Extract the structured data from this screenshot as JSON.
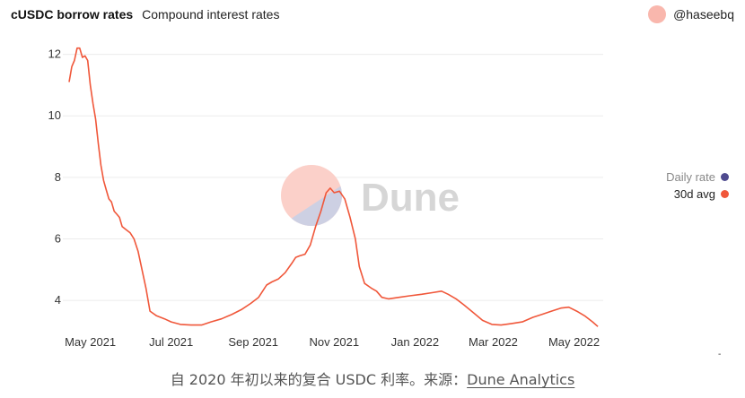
{
  "header": {
    "title": "cUSDC borrow rates",
    "subtitle": "Compound interest rates"
  },
  "author": {
    "name": "@haseebq"
  },
  "watermark": {
    "text": "Dune"
  },
  "legend": [
    {
      "label": "Daily rate",
      "color": "#4f4b8f",
      "active": false
    },
    {
      "label": "30d avg",
      "color": "#f0573a",
      "active": true
    }
  ],
  "caption": {
    "prefix": "自 2020 年初以来的复合 USDC 利率。来源：",
    "link": "Dune Analytics"
  },
  "chart_data": {
    "type": "line",
    "x_type": "date",
    "xlim": [
      "2021-04-15",
      "2022-05-23"
    ],
    "ylim": [
      3.1,
      12.6
    ],
    "y_ticks": [
      4,
      6,
      8,
      10,
      12
    ],
    "x_ticks": [
      {
        "date": "2021-05-01",
        "label": "May 2021"
      },
      {
        "date": "2021-07-01",
        "label": "Jul 2021"
      },
      {
        "date": "2021-09-01",
        "label": "Sep 2021"
      },
      {
        "date": "2021-11-01",
        "label": "Nov 2021"
      },
      {
        "date": "2022-01-01",
        "label": "Jan 2022"
      },
      {
        "date": "2022-03-01",
        "label": "Mar 2022"
      },
      {
        "date": "2022-05-01",
        "label": "May 2022"
      }
    ],
    "grid": true,
    "legend_position": "right",
    "series": [
      {
        "name": "30d avg",
        "color": "#f0573a",
        "points": [
          [
            "2021-04-15",
            11.1
          ],
          [
            "2021-04-17",
            11.6
          ],
          [
            "2021-04-19",
            11.8
          ],
          [
            "2021-04-21",
            12.2
          ],
          [
            "2021-04-23",
            12.2
          ],
          [
            "2021-04-25",
            11.9
          ],
          [
            "2021-04-27",
            11.95
          ],
          [
            "2021-04-29",
            11.8
          ],
          [
            "2021-05-01",
            11.0
          ],
          [
            "2021-05-03",
            10.4
          ],
          [
            "2021-05-05",
            9.9
          ],
          [
            "2021-05-07",
            9.1
          ],
          [
            "2021-05-09",
            8.4
          ],
          [
            "2021-05-11",
            7.9
          ],
          [
            "2021-05-13",
            7.6
          ],
          [
            "2021-05-15",
            7.3
          ],
          [
            "2021-05-17",
            7.2
          ],
          [
            "2021-05-19",
            6.9
          ],
          [
            "2021-05-21",
            6.8
          ],
          [
            "2021-05-23",
            6.7
          ],
          [
            "2021-05-25",
            6.4
          ],
          [
            "2021-05-28",
            6.3
          ],
          [
            "2021-05-31",
            6.2
          ],
          [
            "2021-06-03",
            6.0
          ],
          [
            "2021-06-06",
            5.6
          ],
          [
            "2021-06-09",
            5.0
          ],
          [
            "2021-06-12",
            4.4
          ],
          [
            "2021-06-15",
            3.65
          ],
          [
            "2021-06-20",
            3.5
          ],
          [
            "2021-06-26",
            3.4
          ],
          [
            "2021-07-01",
            3.3
          ],
          [
            "2021-07-08",
            3.22
          ],
          [
            "2021-07-16",
            3.2
          ],
          [
            "2021-07-24",
            3.2
          ],
          [
            "2021-07-31",
            3.3
          ],
          [
            "2021-08-08",
            3.4
          ],
          [
            "2021-08-16",
            3.55
          ],
          [
            "2021-08-23",
            3.7
          ],
          [
            "2021-08-30",
            3.9
          ],
          [
            "2021-09-05",
            4.1
          ],
          [
            "2021-09-08",
            4.3
          ],
          [
            "2021-09-11",
            4.5
          ],
          [
            "2021-09-15",
            4.6
          ],
          [
            "2021-09-20",
            4.7
          ],
          [
            "2021-09-25",
            4.9
          ],
          [
            "2021-09-30",
            5.2
          ],
          [
            "2021-10-03",
            5.4
          ],
          [
            "2021-10-06",
            5.45
          ],
          [
            "2021-10-10",
            5.5
          ],
          [
            "2021-10-14",
            5.8
          ],
          [
            "2021-10-18",
            6.4
          ],
          [
            "2021-10-22",
            6.9
          ],
          [
            "2021-10-26",
            7.5
          ],
          [
            "2021-10-29",
            7.65
          ],
          [
            "2021-11-01",
            7.5
          ],
          [
            "2021-11-05",
            7.55
          ],
          [
            "2021-11-09",
            7.3
          ],
          [
            "2021-11-13",
            6.7
          ],
          [
            "2021-11-17",
            6.0
          ],
          [
            "2021-11-20",
            5.1
          ],
          [
            "2021-11-24",
            4.55
          ],
          [
            "2021-11-29",
            4.4
          ],
          [
            "2021-12-03",
            4.3
          ],
          [
            "2021-12-07",
            4.1
          ],
          [
            "2021-12-12",
            4.05
          ],
          [
            "2021-12-20",
            4.1
          ],
          [
            "2021-12-28",
            4.15
          ],
          [
            "2022-01-06",
            4.2
          ],
          [
            "2022-01-14",
            4.25
          ],
          [
            "2022-01-21",
            4.3
          ],
          [
            "2022-01-26",
            4.2
          ],
          [
            "2022-02-01",
            4.05
          ],
          [
            "2022-02-07",
            3.85
          ],
          [
            "2022-02-14",
            3.6
          ],
          [
            "2022-02-21",
            3.35
          ],
          [
            "2022-02-28",
            3.22
          ],
          [
            "2022-03-07",
            3.2
          ],
          [
            "2022-03-15",
            3.25
          ],
          [
            "2022-03-23",
            3.3
          ],
          [
            "2022-03-31",
            3.45
          ],
          [
            "2022-04-07",
            3.55
          ],
          [
            "2022-04-14",
            3.65
          ],
          [
            "2022-04-21",
            3.75
          ],
          [
            "2022-04-27",
            3.78
          ],
          [
            "2022-05-03",
            3.65
          ],
          [
            "2022-05-09",
            3.5
          ],
          [
            "2022-05-15",
            3.3
          ],
          [
            "2022-05-19",
            3.15
          ]
        ]
      }
    ]
  }
}
